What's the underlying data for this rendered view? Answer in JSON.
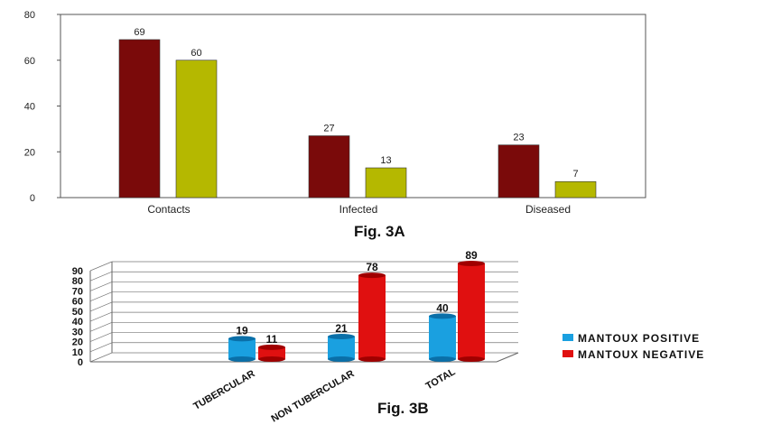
{
  "chart_data": [
    {
      "type": "bar",
      "title": "Fig. 3A",
      "categories": [
        "Contacts",
        "Infected",
        "Diseased"
      ],
      "series": [
        {
          "values": [
            69,
            27,
            23
          ],
          "color": "#7a0a0a"
        },
        {
          "values": [
            60,
            13,
            7
          ],
          "color": "#b5b800"
        }
      ],
      "yticks": [
        "0",
        "20",
        "40",
        "60",
        "80"
      ],
      "ylim": [
        0,
        80
      ],
      "grid": false
    },
    {
      "type": "bar",
      "title": "Fig. 3B",
      "categories": [
        "TUBERCULAR",
        "NON TUBERCULAR",
        "TOTAL"
      ],
      "series": [
        {
          "name": "MANTOUX POSITIVE",
          "values": [
            19,
            21,
            40
          ],
          "color": "#1aa0e0"
        },
        {
          "name": "MANTOUX NEGATIVE",
          "values": [
            11,
            78,
            89
          ],
          "color": "#e01010"
        }
      ],
      "yticks": [
        "0",
        "10",
        "20",
        "30",
        "40",
        "50",
        "60",
        "70",
        "80",
        "90"
      ],
      "ylim": [
        0,
        90
      ],
      "grid": true,
      "legend": "right"
    }
  ]
}
